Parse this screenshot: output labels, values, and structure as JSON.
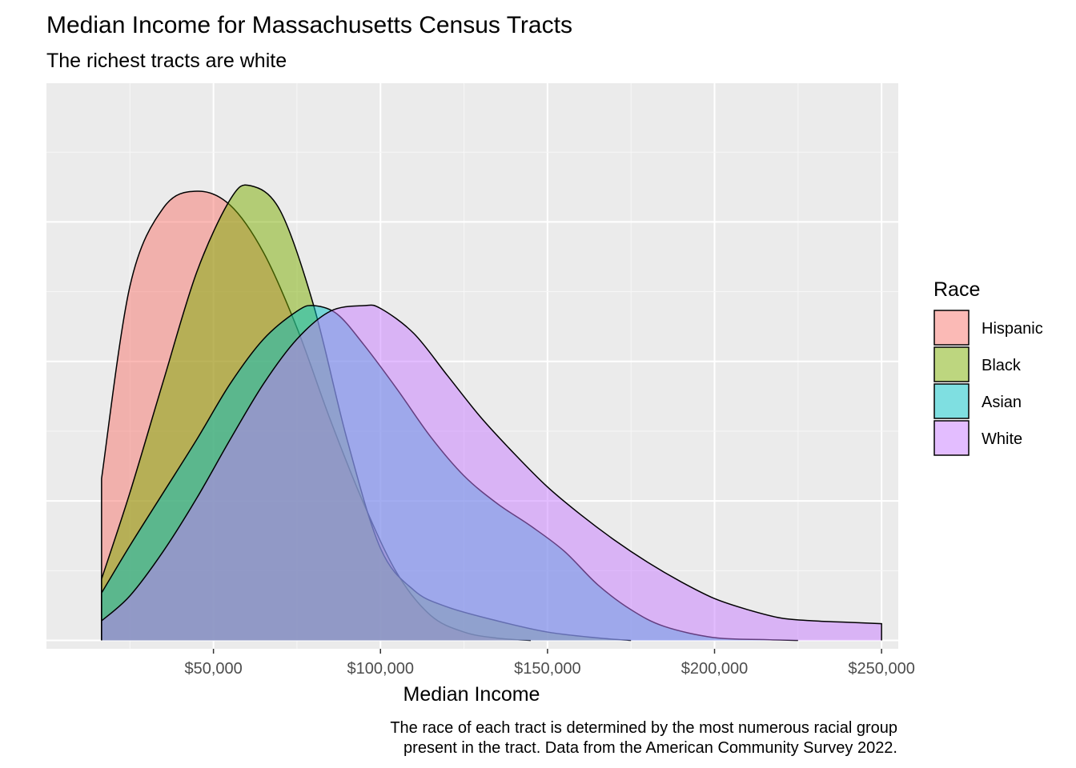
{
  "chart_data": {
    "type": "area",
    "title": "Median Income for Massachusetts Census Tracts",
    "subtitle": "The richest tracts are white",
    "xlabel": "Median Income",
    "ylabel": "",
    "xlim": [
      0,
      255000
    ],
    "ylim": [
      -3e-07,
      2e-05
    ],
    "x_ticks": [
      50000,
      100000,
      150000,
      200000,
      250000
    ],
    "x_tick_labels": [
      "$50,000",
      "$100,000",
      "$150,000",
      "$200,000",
      "$250,000"
    ],
    "grid": true,
    "legend": {
      "title": "Race",
      "position": "right"
    },
    "caption_lines": [
      "The race of each tract is determined by the most numerous racial group",
      "present in the tract. Data from the American Community Survey 2022."
    ],
    "series": [
      {
        "name": "Hispanic",
        "color": "#F8766D",
        "x": [
          16500,
          25000,
          35000,
          45000,
          55000,
          65000,
          75000,
          85000,
          95000,
          105000,
          115000,
          125000,
          135000,
          145000
        ],
        "y": [
          5.8e-06,
          1.27e-05,
          1.55e-05,
          1.61e-05,
          1.56e-05,
          1.39e-05,
          1.12e-05,
          7.9e-06,
          4.9e-06,
          2.4e-06,
          9e-07,
          3e-07,
          8e-08,
          0.0
        ]
      },
      {
        "name": "Black",
        "color": "#7CAE00",
        "x": [
          16500,
          25000,
          35000,
          45000,
          55000,
          61000,
          70000,
          80000,
          90000,
          100000,
          110000,
          120000,
          135000,
          150000,
          165000,
          175000
        ],
        "y": [
          2.2e-06,
          5.3e-06,
          9.3e-06,
          1.32e-05,
          1.58e-05,
          1.63e-05,
          1.54e-05,
          1.2e-05,
          7.2e-06,
          3.3e-06,
          1.8e-06,
          1.2e-06,
          7e-07,
          3e-07,
          9e-08,
          0.0
        ]
      },
      {
        "name": "Asian",
        "color": "#00BFC4",
        "x": [
          16500,
          25000,
          35000,
          45000,
          55000,
          65000,
          75000,
          80000,
          87000,
          95000,
          105000,
          115000,
          125000,
          135000,
          145000,
          155000,
          165000,
          175000,
          185000,
          200000,
          215000,
          225000
        ],
        "y": [
          1.7e-06,
          3.4e-06,
          5.3e-06,
          7.2e-06,
          9.2e-06,
          1.08e-05,
          1.18e-05,
          1.2e-05,
          1.17e-05,
          1.06e-05,
          9e-06,
          7.3e-06,
          5.9e-06,
          4.9e-06,
          4.1e-06,
          3.2e-06,
          2e-06,
          1.1e-06,
          5e-07,
          1e-07,
          3e-08,
          0.0
        ]
      },
      {
        "name": "White",
        "color": "#C77CFF",
        "x": [
          16500,
          25000,
          35000,
          45000,
          55000,
          65000,
          75000,
          85000,
          95000,
          100000,
          110000,
          120000,
          130000,
          140000,
          150000,
          160000,
          170000,
          180000,
          190000,
          200000,
          210000,
          220000,
          230000,
          240000,
          250000
        ],
        "y": [
          7e-07,
          1.6e-06,
          3.2e-06,
          5.1e-06,
          7.2e-06,
          9.2e-06,
          1.08e-05,
          1.18e-05,
          1.2e-05,
          1.19e-05,
          1.1e-05,
          9.5e-06,
          8e-06,
          6.7e-06,
          5.5e-06,
          4.5e-06,
          3.6e-06,
          2.8e-06,
          2.1e-06,
          1.5e-06,
          1.1e-06,
          8e-07,
          7e-07,
          6.5e-07,
          6e-07
        ]
      }
    ]
  }
}
